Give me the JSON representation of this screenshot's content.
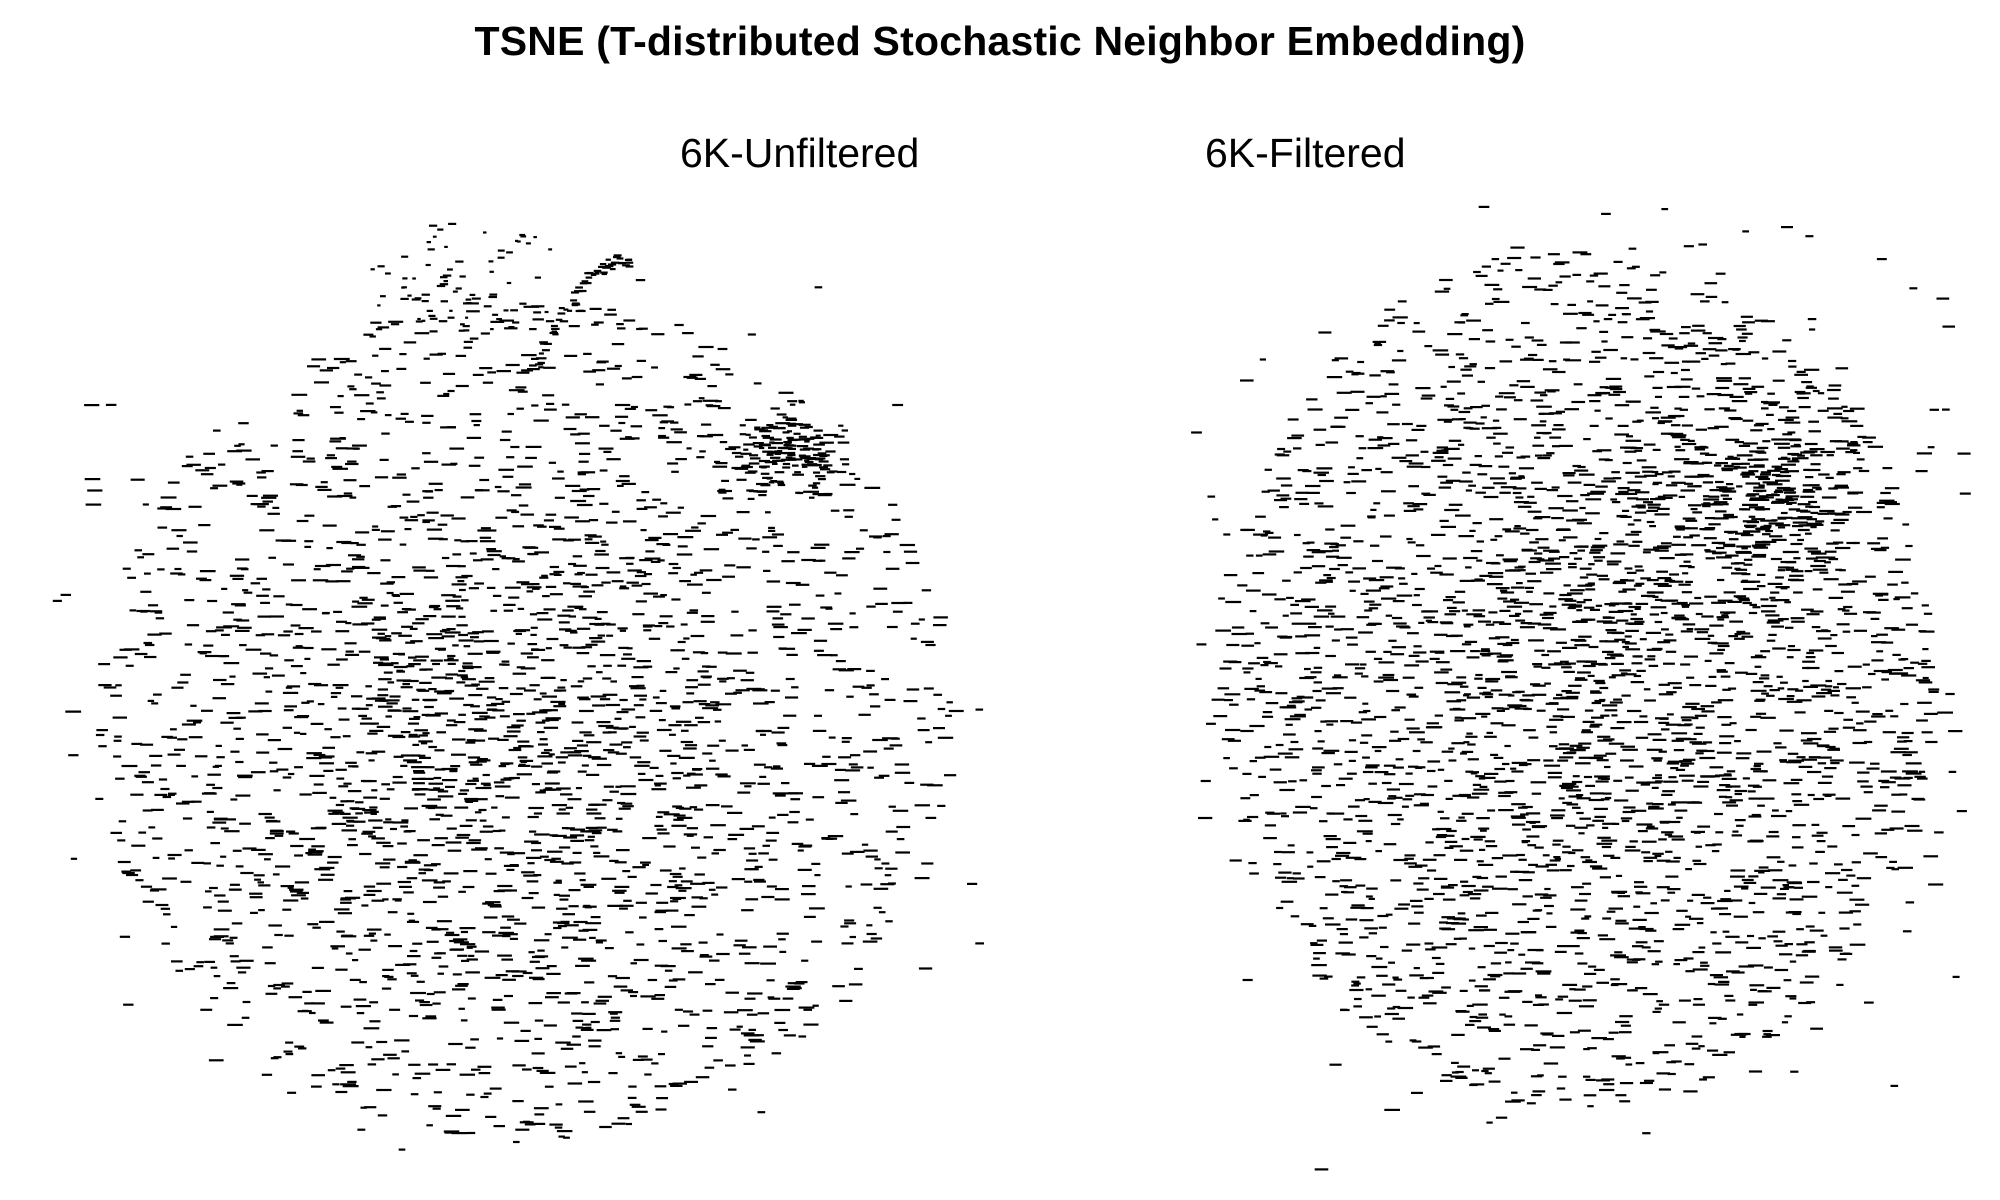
{
  "title": "TSNE (T-distributed Stochastic Neighbor Embedding)",
  "chart_data": [
    {
      "type": "scatter",
      "title": "6K-Unfiltered",
      "marker": "dash",
      "marker_color": "#000000",
      "axes_visible": false,
      "grid": false,
      "legend": "none",
      "point_count_approx": 6000,
      "description_of_distribution": "roughly circular cloud with dense core, a small dense cluster at upper-right and curved arc fragments at the top"
    },
    {
      "type": "scatter",
      "title": "6K-Filtered",
      "marker": "dash",
      "marker_color": "#000000",
      "axes_visible": false,
      "grid": false,
      "legend": "none",
      "point_count_approx": 6000,
      "description_of_distribution": "roughly circular cloud, denser toward center and upper-right"
    }
  ]
}
